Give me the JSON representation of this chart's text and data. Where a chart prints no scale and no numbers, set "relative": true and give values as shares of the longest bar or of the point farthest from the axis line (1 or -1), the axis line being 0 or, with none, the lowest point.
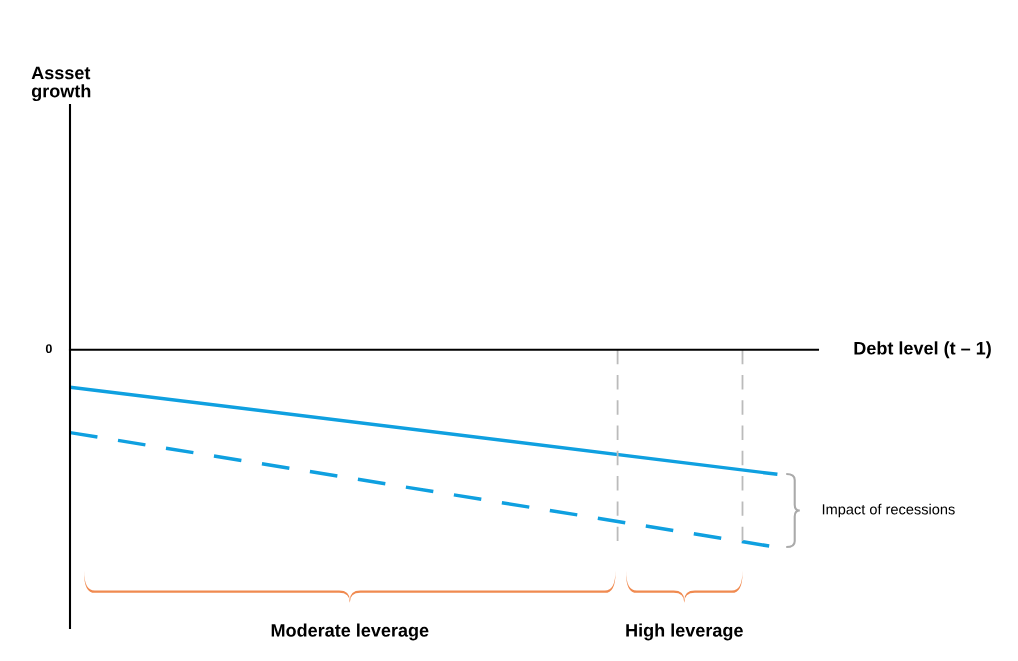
{
  "chart_data": {
    "type": "line",
    "relative": true,
    "xlabel": "Debt level (t – 1)",
    "categories": [
      null,
      null
    ],
    "series": [
      {
        "color": "#0fa0e0",
        "values": [
          -0.19,
          -0.63
        ],
        "line_style": "solid"
      },
      {
        "color": "#0fa0e0",
        "values": [
          -0.42,
          -1.0
        ],
        "line_style": "dashed"
      }
    ],
    "annotations": [
      "0",
      "Moderate leverage",
      "High leverage",
      "Impact of recessions",
      "Assset growth"
    ]
  }
}
